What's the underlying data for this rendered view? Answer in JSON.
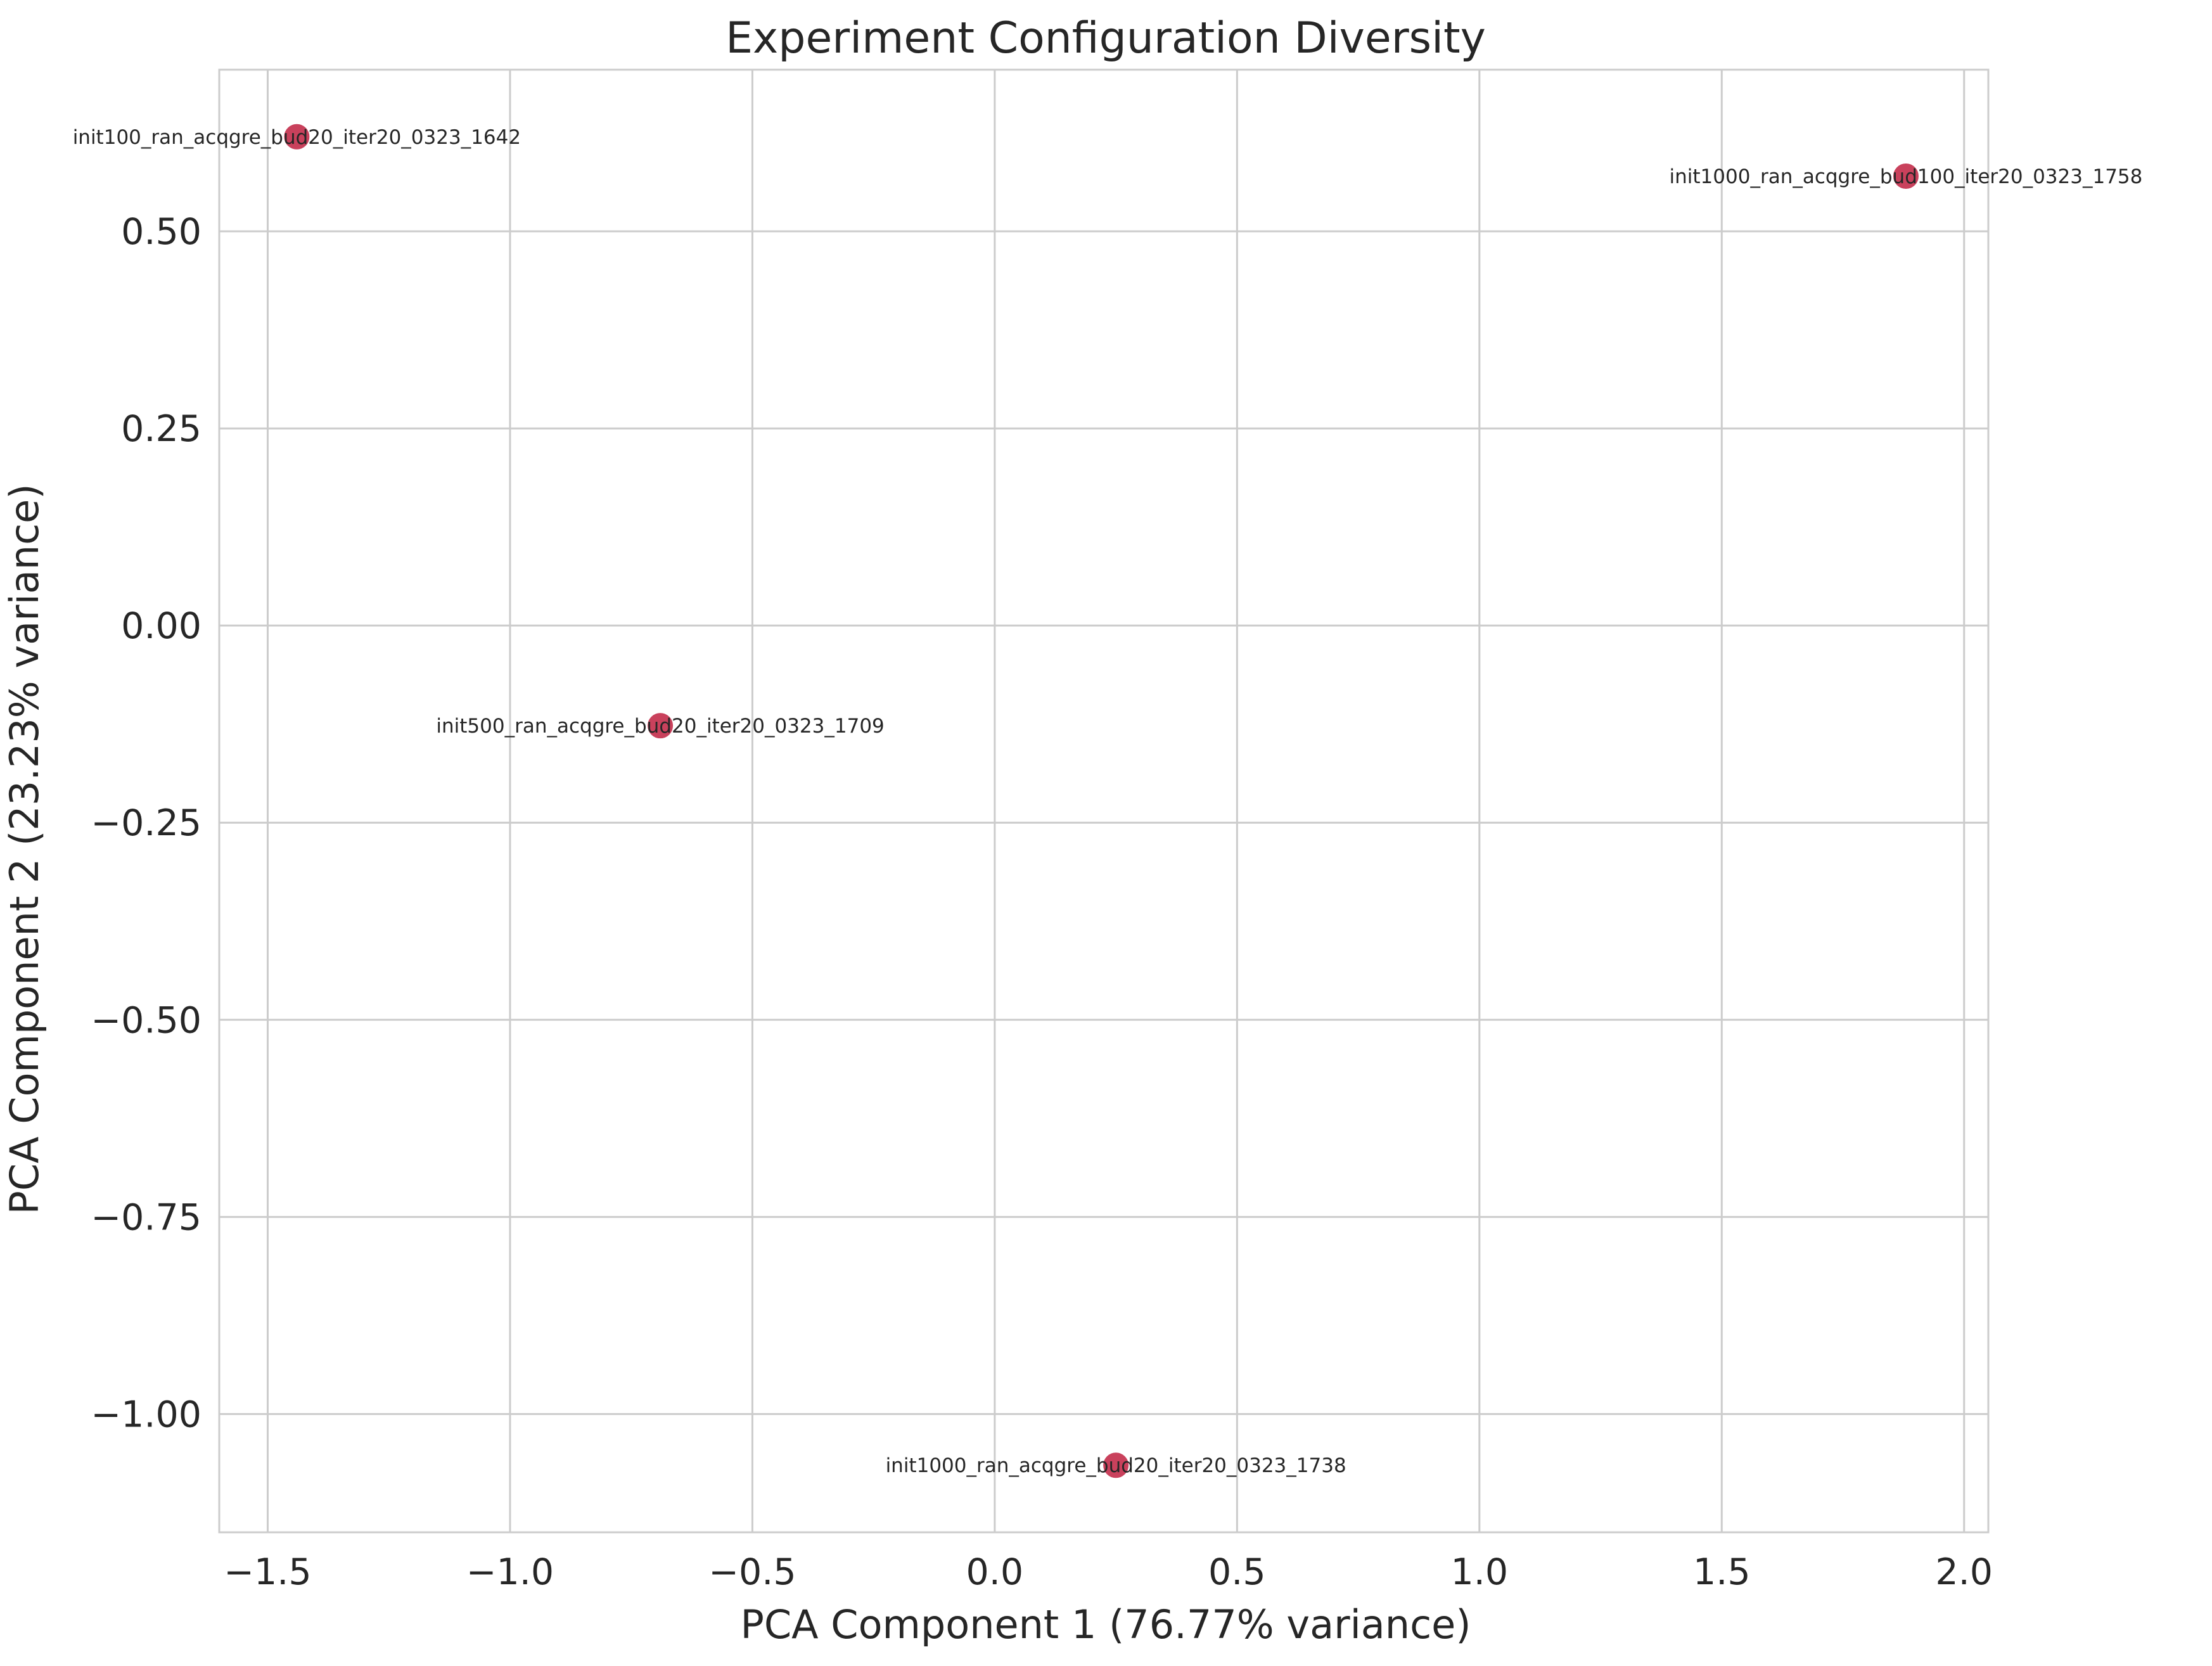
{
  "chart_data": {
    "type": "scatter",
    "title": "Experiment Configuration Diversity",
    "xlabel": "PCA Component 1 (76.77% variance)",
    "ylabel": "PCA Component 2 (23.23% variance)",
    "xlim": [
      -1.6,
      2.05
    ],
    "ylim": [
      -1.15,
      0.705
    ],
    "x_ticks": [
      -1.5,
      -1.0,
      -0.5,
      0.0,
      0.5,
      1.0,
      1.5,
      2.0
    ],
    "y_ticks": [
      -1.0,
      -0.75,
      -0.5,
      -0.25,
      0.0,
      0.25,
      0.5
    ],
    "x_tick_labels": [
      "−1.5",
      "−1.0",
      "−0.5",
      "0.0",
      "0.5",
      "1.0",
      "1.5",
      "2.0"
    ],
    "y_tick_labels": [
      "−1.00",
      "−0.75",
      "−0.50",
      "−0.25",
      "0.00",
      "0.25",
      "0.50"
    ],
    "grid": true,
    "marker_color": "#c0203f",
    "points": [
      {
        "label": "init100_ran_acqgre_bud20_iter20_0323_1642",
        "x": -1.44,
        "y": 0.62
      },
      {
        "label": "init1000_ran_acqgre_bud100_iter20_0323_1758",
        "x": 1.88,
        "y": 0.57
      },
      {
        "label": "init500_ran_acqgre_bud20_iter20_0323_1709",
        "x": -0.69,
        "y": -0.127
      },
      {
        "label": "init1000_ran_acqgre_bud20_iter20_0323_1738",
        "x": 0.25,
        "y": -1.065
      }
    ]
  }
}
